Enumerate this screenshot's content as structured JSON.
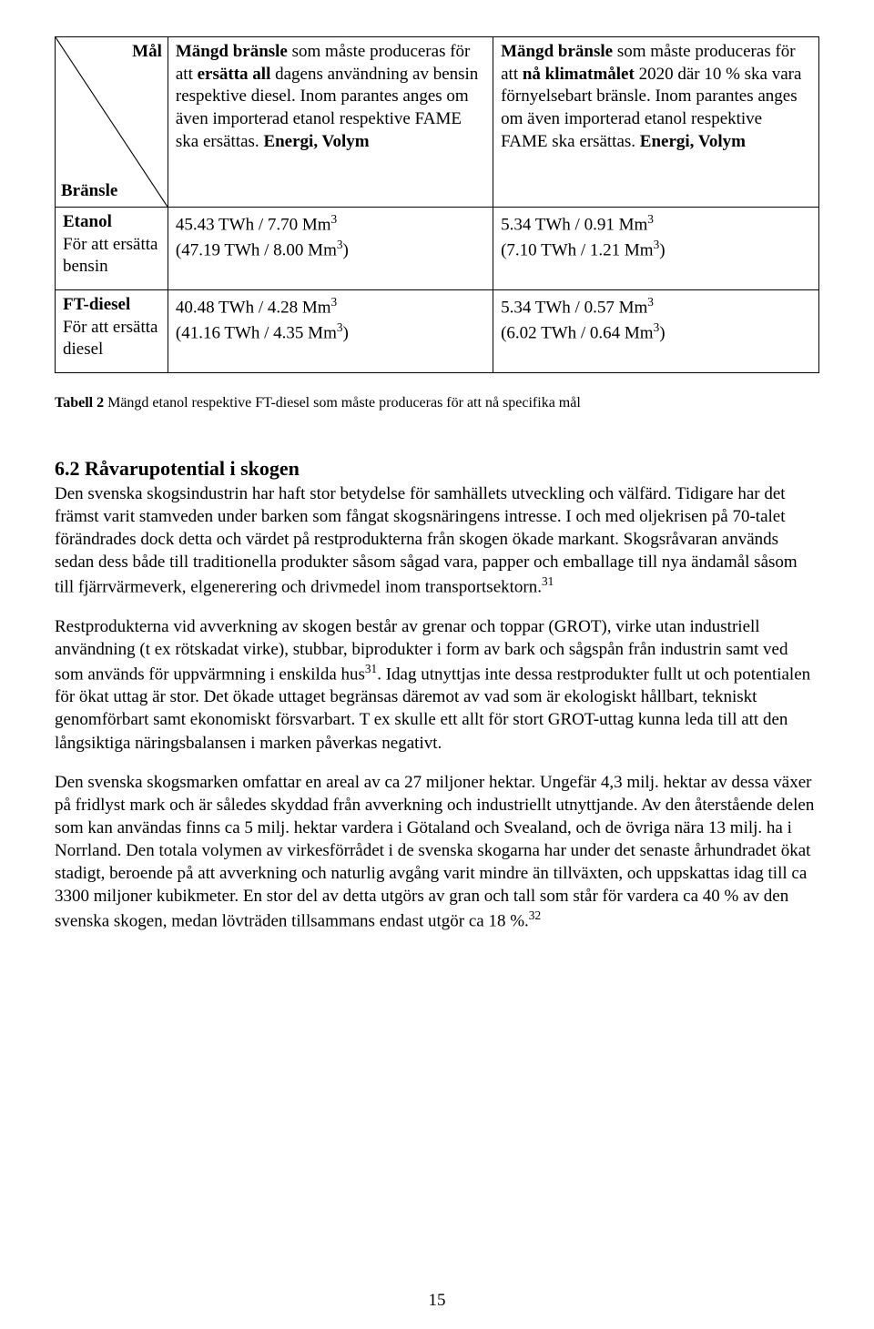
{
  "table": {
    "diag_top": "Mål",
    "diag_bottom": "Bränsle",
    "col1_header_html": "<b>Mängd bränsle</b> som måste produceras för att <b>ersätta all</b> dagens användning av bensin respektive diesel. Inom parantes anges om även importerad etanol respektive FAME ska ersättas. <b>Energi, Volym</b>",
    "col2_header_html": "<b>Mängd bränsle</b> som måste produceras för att <b>nå klimatmålet</b> 2020 där 10 % ska vara förnyelsebart bränsle. Inom parantes anges om även importerad etanol respektive FAME ska ersättas. <b>Energi, Volym</b>",
    "row1_label_html": "<b>Etanol</b><br>För att ersätta bensin",
    "row1_c1_html": "45.43 TWh / 7.70 Mm<sup>3</sup><br>(47.19 TWh / 8.00 Mm<sup>3</sup>)",
    "row1_c2_html": "5.34 TWh / 0.91 Mm<sup>3</sup><br>(7.10 TWh / 1.21 Mm<sup>3</sup>)",
    "row2_label_html": "<b>FT-diesel</b><br>För att ersätta diesel",
    "row2_c1_html": "40.48 TWh / 4.28 Mm<sup>3</sup><br>(41.16 TWh / 4.35 Mm<sup>3</sup>)",
    "row2_c2_html": "5.34 TWh / 0.57 Mm<sup>3</sup><br>(6.02 TWh / 0.64 Mm<sup>3</sup>)"
  },
  "caption_html": "<b>Tabell 2</b> Mängd etanol respektive FT-diesel som måste produceras för att nå specifika mål",
  "section_heading": "6.2 Råvarupotential i skogen",
  "para1_html": "Den svenska skogsindustrin har haft stor betydelse för samhällets utveckling och välfärd. Tidigare har det främst varit stamveden under barken som fångat skogsnäringens intresse. I och med oljekrisen på 70-talet förändrades dock detta och värdet på restprodukterna från skogen ökade markant. Skogsråvaran används sedan dess både till traditionella produkter såsom sågad vara, papper och emballage till nya ändamål såsom till fjärrvärmeverk, elgenerering och drivmedel inom transportsektorn.<sup>31</sup>",
  "para2_html": "Restprodukterna vid avverkning av skogen består av grenar och toppar (GROT), virke utan industriell användning (t ex rötskadat virke), stubbar, biprodukter i form av bark och sågspån från industrin samt ved som används för uppvärmning i enskilda hus<sup>31</sup>. Idag utnyttjas inte dessa restprodukter fullt ut och potentialen för ökat uttag är stor. Det ökade uttaget begränsas däremot av vad som är ekologiskt hållbart, tekniskt genomförbart samt ekonomiskt försvarbart. T ex skulle ett allt för stort GROT-uttag kunna leda till att den långsiktiga näringsbalansen i marken påverkas negativt.",
  "para3_html": "Den svenska skogsmarken omfattar en areal av ca 27 miljoner hektar. Ungefär 4,3 milj. hektar av dessa växer på fridlyst mark och är således skyddad från avverkning och industriellt utnyttjande. Av den återstående delen som kan användas finns ca 5 milj. hektar vardera i Götaland och Svealand, och de övriga nära 13 milj. ha i Norrland. Den totala volymen av virkesförrådet i de svenska skogarna har under det senaste århundradet ökat stadigt, beroende på att avverkning och naturlig avgång varit mindre än tillväxten, och uppskattas idag till ca 3300 miljoner kubikmeter. En stor del av detta utgörs av gran och tall som står för vardera ca 40 % av den svenska skogen, medan lövträden tillsammans endast utgör ca 18 %.<sup>32</sup>",
  "page_number": "15",
  "colors": {
    "text": "#000000",
    "background": "#ffffff",
    "border": "#000000"
  },
  "fonts": {
    "body_family": "Times New Roman",
    "body_size_pt": 14,
    "caption_size_pt": 11,
    "heading_size_pt": 16
  }
}
